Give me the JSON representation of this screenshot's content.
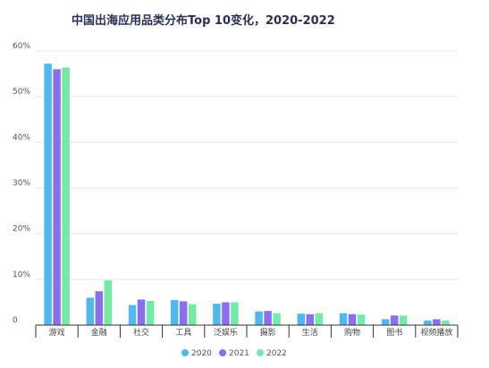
{
  "chart_data": {
    "type": "bar",
    "title": "中国出海应用品类分布Top 10变化，2020-2022",
    "xlabel": "",
    "ylabel": "",
    "ylim": [
      0,
      60
    ],
    "yticks": [
      "0",
      "10%",
      "20%",
      "30%",
      "40%",
      "50%",
      "60%"
    ],
    "grid": true,
    "legend_position": "bottom-center",
    "categories": [
      "游戏",
      "金融",
      "社交",
      "工具",
      "泛娱乐",
      "摄影",
      "生活",
      "购物",
      "图书",
      "视频播放"
    ],
    "series": [
      {
        "name": "2020",
        "color": "#4fb9ef",
        "values": [
          57.2,
          6.0,
          4.4,
          5.5,
          4.7,
          3.0,
          2.5,
          2.6,
          1.3,
          1.0
        ]
      },
      {
        "name": "2021",
        "color": "#8b6ff0",
        "values": [
          56.0,
          7.4,
          5.6,
          5.2,
          5.0,
          3.1,
          2.4,
          2.4,
          2.1,
          1.3
        ]
      },
      {
        "name": "2022",
        "color": "#72eba9",
        "values": [
          56.4,
          9.8,
          5.3,
          4.6,
          5.0,
          2.6,
          2.6,
          2.3,
          2.1,
          1.0
        ]
      }
    ]
  }
}
